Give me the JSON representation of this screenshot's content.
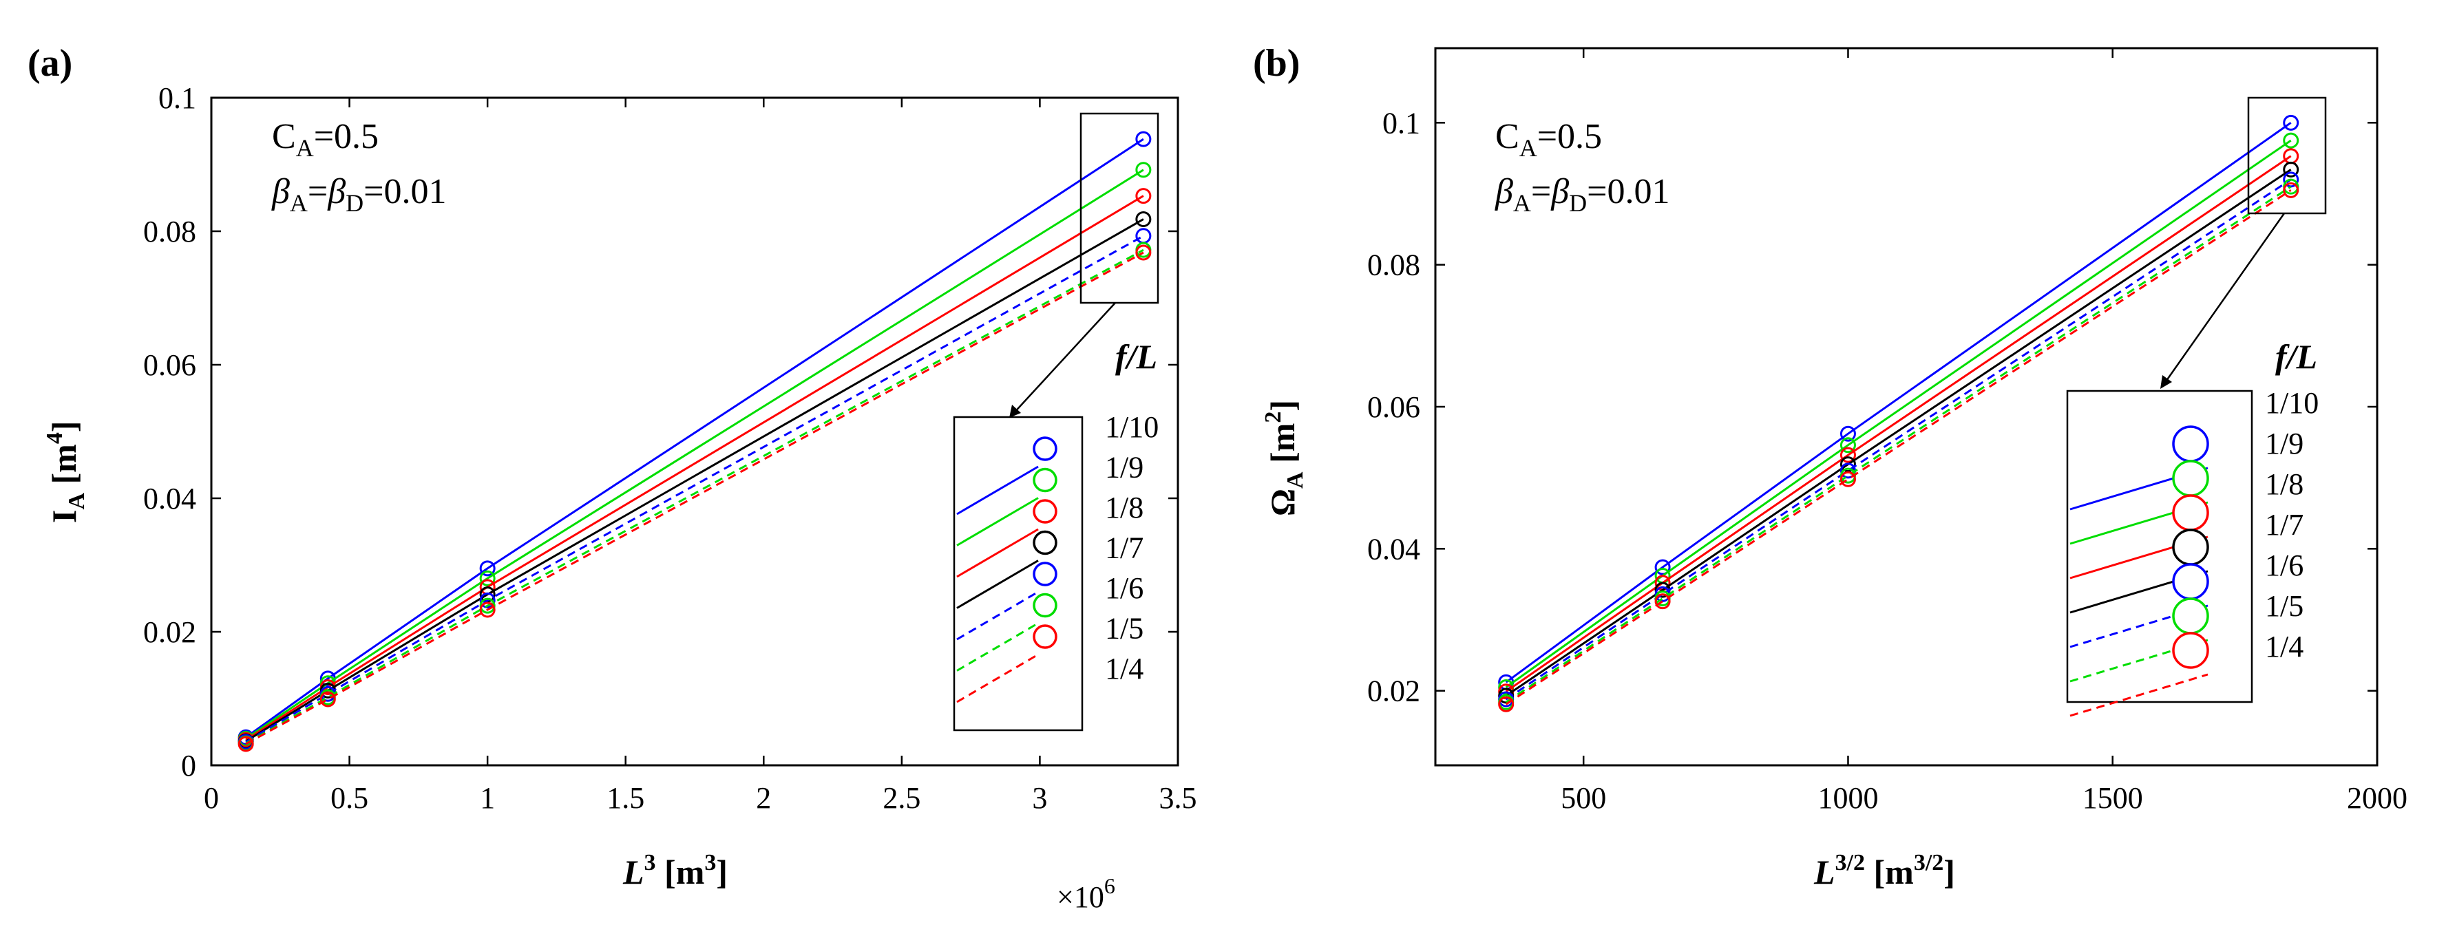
{
  "chart_data": [
    {
      "panel_label": "(a)",
      "type": "line",
      "xlabel": "L3 [m3]",
      "xlabel_main": "L",
      "xlabel_sup": "3",
      "xlabel_unit": " [m",
      "xlabel_unit_sup": "3",
      "xlabel_close": "]",
      "ylabel_main": "I",
      "ylabel_sub": "A",
      "ylabel_unit": " [m",
      "ylabel_unit_sup": "4",
      "ylabel_close": "]",
      "x_multiplier": "×10",
      "x_multiplier_exp": "6",
      "xlim": [
        0,
        3.5
      ],
      "ylim": [
        0,
        0.1
      ],
      "xticks": [
        0,
        0.5,
        1,
        1.5,
        2,
        2.5,
        3,
        3.5
      ],
      "xtick_labels": [
        "0",
        "0.5",
        "1",
        "1.5",
        "2",
        "2.5",
        "3",
        "3.5"
      ],
      "yticks": [
        0,
        0.02,
        0.04,
        0.06,
        0.08,
        0.1
      ],
      "ytick_labels": [
        "0",
        "0.02",
        "0.04",
        "0.06",
        "0.08",
        "0.1"
      ],
      "x": [
        0.125,
        0.422,
        1.0,
        3.375
      ],
      "series": [
        {
          "name": "1/10",
          "color": "#0000ff",
          "style": "solid",
          "y": [
            0.0042,
            0.013,
            0.0295,
            0.0938
          ]
        },
        {
          "name": "1/9",
          "color": "#00dd00",
          "style": "solid",
          "y": [
            0.004,
            0.0123,
            0.028,
            0.0892
          ]
        },
        {
          "name": "1/8",
          "color": "#ff0000",
          "style": "solid",
          "y": [
            0.0038,
            0.0117,
            0.0267,
            0.0853
          ]
        },
        {
          "name": "1/7",
          "color": "#000000",
          "style": "solid",
          "y": [
            0.0036,
            0.0112,
            0.0256,
            0.0818
          ]
        },
        {
          "name": "1/6",
          "color": "#0000ff",
          "style": "dashed",
          "y": [
            0.0035,
            0.0107,
            0.0247,
            0.0793
          ]
        },
        {
          "name": "1/5",
          "color": "#00dd00",
          "style": "dashed",
          "y": [
            0.0033,
            0.0102,
            0.0239,
            0.0772
          ]
        },
        {
          "name": "1/4",
          "color": "#ff0000",
          "style": "dashed",
          "y": [
            0.0032,
            0.0099,
            0.0233,
            0.0768
          ]
        }
      ]
    },
    {
      "panel_label": "(b)",
      "type": "line",
      "xlabel": "L3/2 [m3/2]",
      "xlabel_main": "L",
      "xlabel_sup": "3/2",
      "xlabel_unit": " [m",
      "xlabel_unit_sup": "3/2",
      "xlabel_close": "]",
      "ylabel_main": "Ω",
      "ylabel_sub": "A",
      "ylabel_unit": " [m",
      "ylabel_unit_sup": "2",
      "ylabel_close": "]",
      "xlim": [
        220,
        2000
      ],
      "ylim": [
        0.0095,
        0.1105
      ],
      "xticks": [
        500,
        1000,
        1500,
        2000
      ],
      "xtick_labels": [
        "500",
        "1000",
        "1500",
        "2000"
      ],
      "yticks": [
        0.02,
        0.04,
        0.06,
        0.08,
        0.1
      ],
      "ytick_labels": [
        "0.02",
        "0.04",
        "0.06",
        "0.08",
        "0.1"
      ],
      "x": [
        353.6,
        649.5,
        1000,
        1837
      ],
      "series": [
        {
          "name": "1/10",
          "color": "#0000ff",
          "style": "solid",
          "y": [
            0.0212,
            0.0374,
            0.0562,
            0.1
          ]
        },
        {
          "name": "1/9",
          "color": "#00dd00",
          "style": "solid",
          "y": [
            0.0205,
            0.0362,
            0.0546,
            0.0975
          ]
        },
        {
          "name": "1/8",
          "color": "#ff0000",
          "style": "solid",
          "y": [
            0.0199,
            0.0352,
            0.0532,
            0.0953
          ]
        },
        {
          "name": "1/7",
          "color": "#000000",
          "style": "solid",
          "y": [
            0.0193,
            0.0342,
            0.0519,
            0.0934
          ]
        },
        {
          "name": "1/6",
          "color": "#0000ff",
          "style": "dashed",
          "y": [
            0.0188,
            0.0336,
            0.051,
            0.092
          ]
        },
        {
          "name": "1/5",
          "color": "#00dd00",
          "style": "dashed",
          "y": [
            0.0184,
            0.033,
            0.0503,
            0.091
          ]
        },
        {
          "name": "1/4",
          "color": "#ff0000",
          "style": "dashed",
          "y": [
            0.0181,
            0.0326,
            0.0498,
            0.0905
          ]
        }
      ]
    }
  ],
  "annotation": {
    "c_main": "C",
    "c_sub": "A",
    "c_val": "=0.5",
    "beta": "β",
    "beta_sub_a": "A",
    "eq": "=",
    "beta_sub_d": "D",
    "beta_val": "=0.01"
  },
  "legend_title": "f/L",
  "legend_labels": [
    "1/10",
    "1/9",
    "1/8",
    "1/7",
    "1/6",
    "1/5",
    "1/4"
  ]
}
